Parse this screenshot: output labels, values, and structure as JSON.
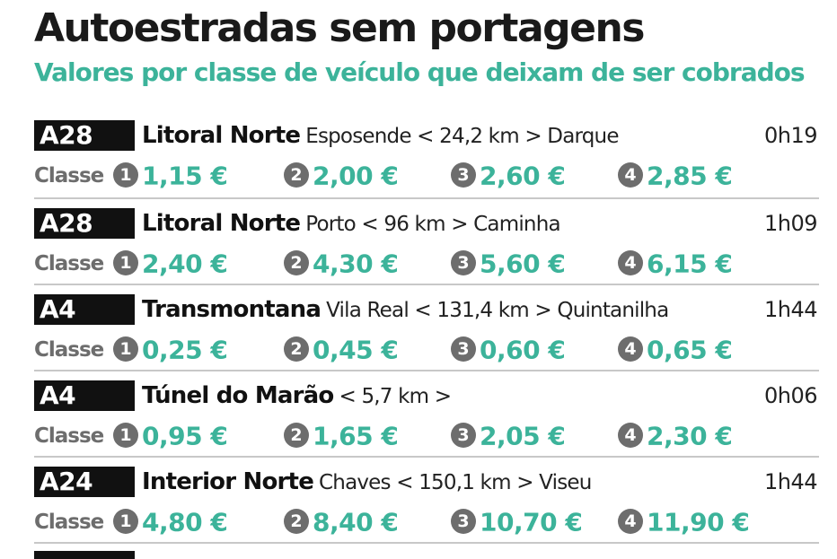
{
  "header": {
    "title": "Autoestradas sem portagens",
    "subtitle": "Valores por classe de veículo que deixam de ser cobrados"
  },
  "classe_label": "Classe",
  "class_numbers": [
    "1",
    "2",
    "3",
    "4"
  ],
  "colors": {
    "accent": "#3cb39a",
    "code_bg": "#111111",
    "class_badge": "#6d6d6d"
  },
  "routes": [
    {
      "code": "A28",
      "name": "Litoral Norte",
      "detail": "Esposende < 24,2 km > Darque",
      "time": "0h19",
      "prices": [
        "1,15 €",
        "2,00 €",
        "2,60 €",
        "2,85 €"
      ]
    },
    {
      "code": "A28",
      "name": "Litoral Norte",
      "detail": "Porto < 96 km > Caminha",
      "time": "1h09",
      "prices": [
        "2,40 €",
        "4,30 €",
        "5,60 €",
        "6,15 €"
      ]
    },
    {
      "code": "A4",
      "name": "Transmontana",
      "detail": "Vila Real < 131,4 km > Quintanilha",
      "time": "1h44",
      "prices": [
        "0,25 €",
        "0,45 €",
        "0,60 €",
        "0,65 €"
      ]
    },
    {
      "code": "A4",
      "name": "Túnel do Marão",
      "detail": "< 5,7 km >",
      "time": "0h06",
      "prices": [
        "0,95 €",
        "1,65 €",
        "2,05 €",
        "2,30 €"
      ]
    },
    {
      "code": "A24",
      "name": "Interior Norte",
      "detail": "Chaves < 150,1 km > Viseu",
      "time": "1h44",
      "prices": [
        "4,80 €",
        "8,40 €",
        "10,70 €",
        "11,90 €"
      ]
    }
  ]
}
